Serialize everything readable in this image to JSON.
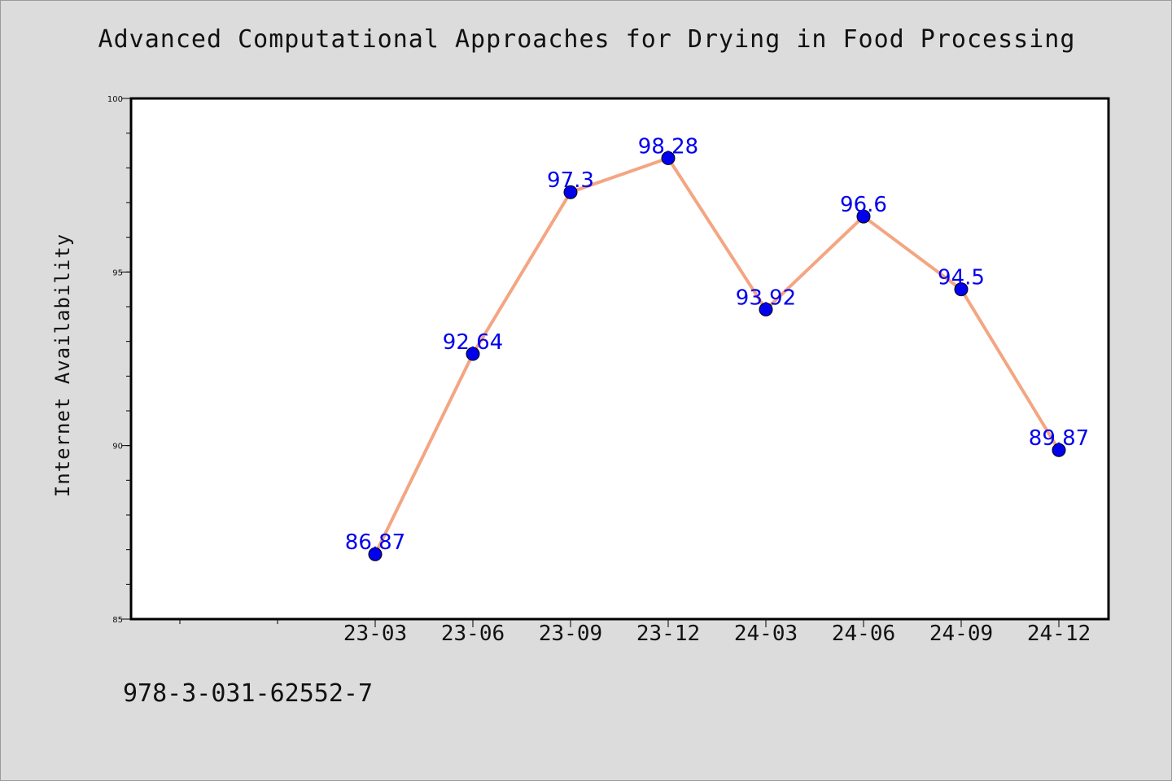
{
  "chart_data": {
    "type": "line",
    "title": "Advanced Computational Approaches for Drying in Food Processing",
    "xlabel": "",
    "ylabel": "Internet Availability",
    "categories": [
      "23-03",
      "23-06",
      "23-09",
      "23-12",
      "24-03",
      "24-06",
      "24-09",
      "24-12"
    ],
    "values": [
      86.87,
      92.64,
      97.3,
      98.28,
      93.92,
      96.6,
      94.5,
      89.87
    ],
    "data_labels": [
      "86.87",
      "92.64",
      "97.3",
      "98.28",
      "93.92",
      "96.6",
      "94.5",
      "89.87"
    ],
    "ylim": [
      85,
      100
    ],
    "yticks": [
      "85",
      "90",
      "95",
      "100"
    ],
    "grid": false,
    "legend": "none",
    "colors": {
      "line": "#f4a582",
      "marker": "#0000ee",
      "label": "#0000ee",
      "plot_background": "#ffffff",
      "page_background": "#dcdcdc"
    }
  },
  "footer": {
    "code": "978-3-031-62552-7"
  }
}
